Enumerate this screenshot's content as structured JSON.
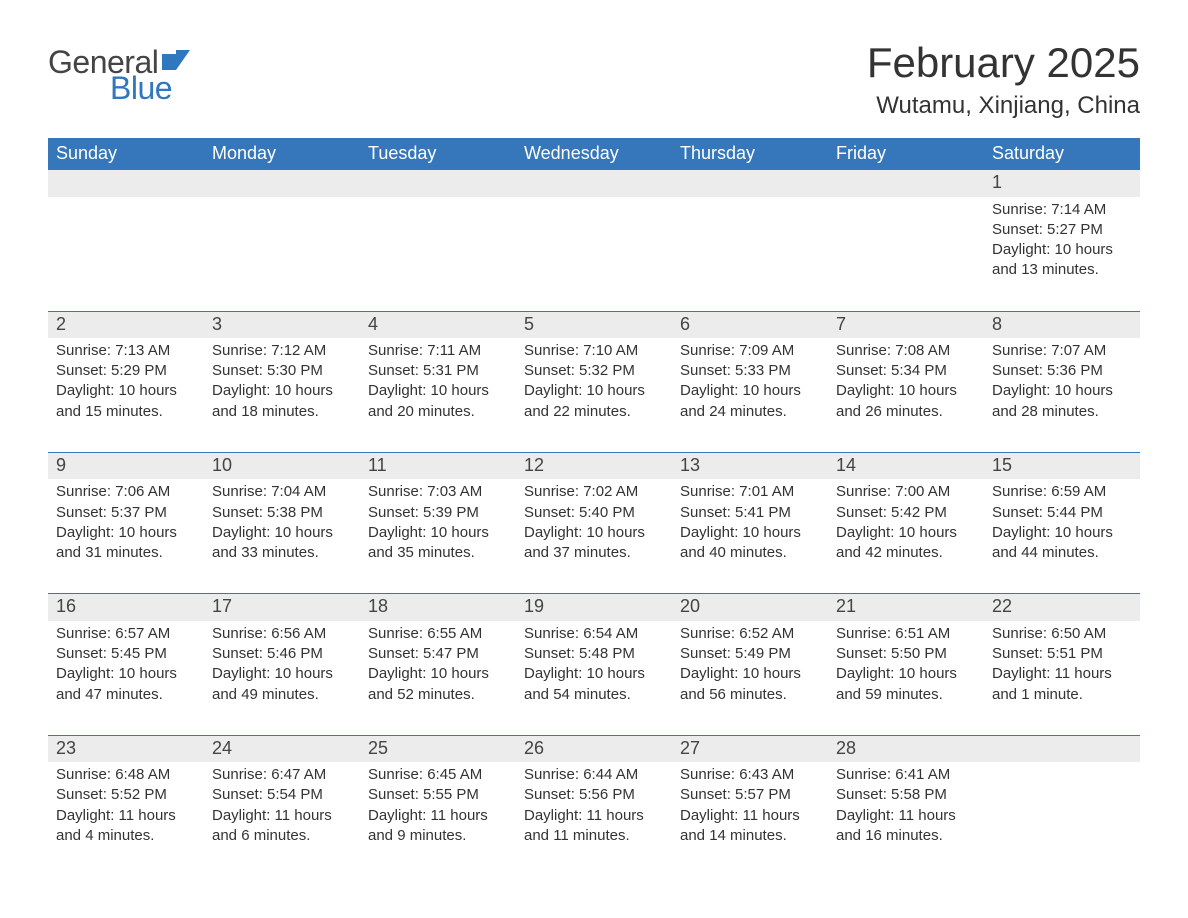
{
  "logo": {
    "word1": "General",
    "word2": "Blue"
  },
  "title": "February 2025",
  "subtitle": "Wutamu, Xinjiang, China",
  "colors": {
    "header_bg": "#3577ba",
    "header_text": "#ffffff",
    "daynum_bg": "#ececec",
    "text": "#333333",
    "accent": "#2f78bf",
    "page_bg": "#ffffff"
  },
  "weekdays": [
    "Sunday",
    "Monday",
    "Tuesday",
    "Wednesday",
    "Thursday",
    "Friday",
    "Saturday"
  ],
  "weeks": [
    [
      null,
      null,
      null,
      null,
      null,
      null,
      {
        "n": "1",
        "sr": "Sunrise: 7:14 AM",
        "ss": "Sunset: 5:27 PM",
        "dl": "Daylight: 10 hours and 13 minutes."
      }
    ],
    [
      {
        "n": "2",
        "sr": "Sunrise: 7:13 AM",
        "ss": "Sunset: 5:29 PM",
        "dl": "Daylight: 10 hours and 15 minutes."
      },
      {
        "n": "3",
        "sr": "Sunrise: 7:12 AM",
        "ss": "Sunset: 5:30 PM",
        "dl": "Daylight: 10 hours and 18 minutes."
      },
      {
        "n": "4",
        "sr": "Sunrise: 7:11 AM",
        "ss": "Sunset: 5:31 PM",
        "dl": "Daylight: 10 hours and 20 minutes."
      },
      {
        "n": "5",
        "sr": "Sunrise: 7:10 AM",
        "ss": "Sunset: 5:32 PM",
        "dl": "Daylight: 10 hours and 22 minutes."
      },
      {
        "n": "6",
        "sr": "Sunrise: 7:09 AM",
        "ss": "Sunset: 5:33 PM",
        "dl": "Daylight: 10 hours and 24 minutes."
      },
      {
        "n": "7",
        "sr": "Sunrise: 7:08 AM",
        "ss": "Sunset: 5:34 PM",
        "dl": "Daylight: 10 hours and 26 minutes."
      },
      {
        "n": "8",
        "sr": "Sunrise: 7:07 AM",
        "ss": "Sunset: 5:36 PM",
        "dl": "Daylight: 10 hours and 28 minutes."
      }
    ],
    [
      {
        "n": "9",
        "sr": "Sunrise: 7:06 AM",
        "ss": "Sunset: 5:37 PM",
        "dl": "Daylight: 10 hours and 31 minutes."
      },
      {
        "n": "10",
        "sr": "Sunrise: 7:04 AM",
        "ss": "Sunset: 5:38 PM",
        "dl": "Daylight: 10 hours and 33 minutes."
      },
      {
        "n": "11",
        "sr": "Sunrise: 7:03 AM",
        "ss": "Sunset: 5:39 PM",
        "dl": "Daylight: 10 hours and 35 minutes."
      },
      {
        "n": "12",
        "sr": "Sunrise: 7:02 AM",
        "ss": "Sunset: 5:40 PM",
        "dl": "Daylight: 10 hours and 37 minutes."
      },
      {
        "n": "13",
        "sr": "Sunrise: 7:01 AM",
        "ss": "Sunset: 5:41 PM",
        "dl": "Daylight: 10 hours and 40 minutes."
      },
      {
        "n": "14",
        "sr": "Sunrise: 7:00 AM",
        "ss": "Sunset: 5:42 PM",
        "dl": "Daylight: 10 hours and 42 minutes."
      },
      {
        "n": "15",
        "sr": "Sunrise: 6:59 AM",
        "ss": "Sunset: 5:44 PM",
        "dl": "Daylight: 10 hours and 44 minutes."
      }
    ],
    [
      {
        "n": "16",
        "sr": "Sunrise: 6:57 AM",
        "ss": "Sunset: 5:45 PM",
        "dl": "Daylight: 10 hours and 47 minutes."
      },
      {
        "n": "17",
        "sr": "Sunrise: 6:56 AM",
        "ss": "Sunset: 5:46 PM",
        "dl": "Daylight: 10 hours and 49 minutes."
      },
      {
        "n": "18",
        "sr": "Sunrise: 6:55 AM",
        "ss": "Sunset: 5:47 PM",
        "dl": "Daylight: 10 hours and 52 minutes."
      },
      {
        "n": "19",
        "sr": "Sunrise: 6:54 AM",
        "ss": "Sunset: 5:48 PM",
        "dl": "Daylight: 10 hours and 54 minutes."
      },
      {
        "n": "20",
        "sr": "Sunrise: 6:52 AM",
        "ss": "Sunset: 5:49 PM",
        "dl": "Daylight: 10 hours and 56 minutes."
      },
      {
        "n": "21",
        "sr": "Sunrise: 6:51 AM",
        "ss": "Sunset: 5:50 PM",
        "dl": "Daylight: 10 hours and 59 minutes."
      },
      {
        "n": "22",
        "sr": "Sunrise: 6:50 AM",
        "ss": "Sunset: 5:51 PM",
        "dl": "Daylight: 11 hours and 1 minute."
      }
    ],
    [
      {
        "n": "23",
        "sr": "Sunrise: 6:48 AM",
        "ss": "Sunset: 5:52 PM",
        "dl": "Daylight: 11 hours and 4 minutes."
      },
      {
        "n": "24",
        "sr": "Sunrise: 6:47 AM",
        "ss": "Sunset: 5:54 PM",
        "dl": "Daylight: 11 hours and 6 minutes."
      },
      {
        "n": "25",
        "sr": "Sunrise: 6:45 AM",
        "ss": "Sunset: 5:55 PM",
        "dl": "Daylight: 11 hours and 9 minutes."
      },
      {
        "n": "26",
        "sr": "Sunrise: 6:44 AM",
        "ss": "Sunset: 5:56 PM",
        "dl": "Daylight: 11 hours and 11 minutes."
      },
      {
        "n": "27",
        "sr": "Sunrise: 6:43 AM",
        "ss": "Sunset: 5:57 PM",
        "dl": "Daylight: 11 hours and 14 minutes."
      },
      {
        "n": "28",
        "sr": "Sunrise: 6:41 AM",
        "ss": "Sunset: 5:58 PM",
        "dl": "Daylight: 11 hours and 16 minutes."
      },
      null
    ]
  ]
}
